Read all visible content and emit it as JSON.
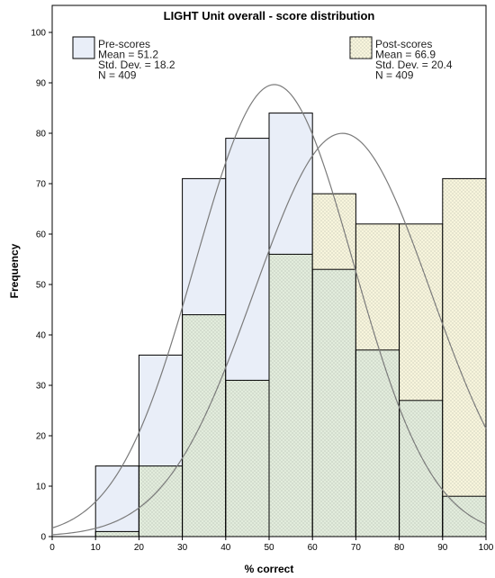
{
  "chart_data": {
    "type": "bar",
    "title": "LIGHT Unit overall - score distribution",
    "xlabel": "% correct",
    "ylabel": "Frequency",
    "xlim": [
      0,
      100
    ],
    "ylim": [
      0,
      100
    ],
    "x_ticks": [
      0,
      10,
      20,
      30,
      40,
      50,
      60,
      70,
      80,
      90,
      100
    ],
    "y_ticks": [
      0,
      10,
      20,
      30,
      40,
      50,
      60,
      70,
      80,
      90,
      100
    ],
    "bins": [
      [
        10,
        20
      ],
      [
        20,
        30
      ],
      [
        30,
        40
      ],
      [
        40,
        50
      ],
      [
        50,
        60
      ],
      [
        60,
        70
      ],
      [
        70,
        80
      ],
      [
        80,
        90
      ],
      [
        90,
        100
      ]
    ],
    "series": [
      {
        "name": "Pre-scores",
        "values": [
          14,
          36,
          71,
          79,
          84,
          53,
          37,
          27,
          8
        ],
        "color": "#e9eef8",
        "mean": 51.2,
        "std": 18.2,
        "n": 409,
        "legend_lines": [
          "Pre-scores",
          "Mean = 51.2",
          "Std. Dev. = 18.2",
          "N = 409"
        ]
      },
      {
        "name": "Post-scores",
        "values": [
          1,
          14,
          44,
          31,
          56,
          68,
          62,
          62,
          71
        ],
        "color": "#f8f5dc",
        "mean": 66.9,
        "std": 20.4,
        "n": 409,
        "legend_lines": [
          "Post-scores",
          "Mean = 66.9",
          "Std. Dev. = 20.4",
          "N = 409"
        ]
      }
    ],
    "overlap_color": "#e2ecdc",
    "curve_color": "#7b7b7b",
    "grid": false
  }
}
